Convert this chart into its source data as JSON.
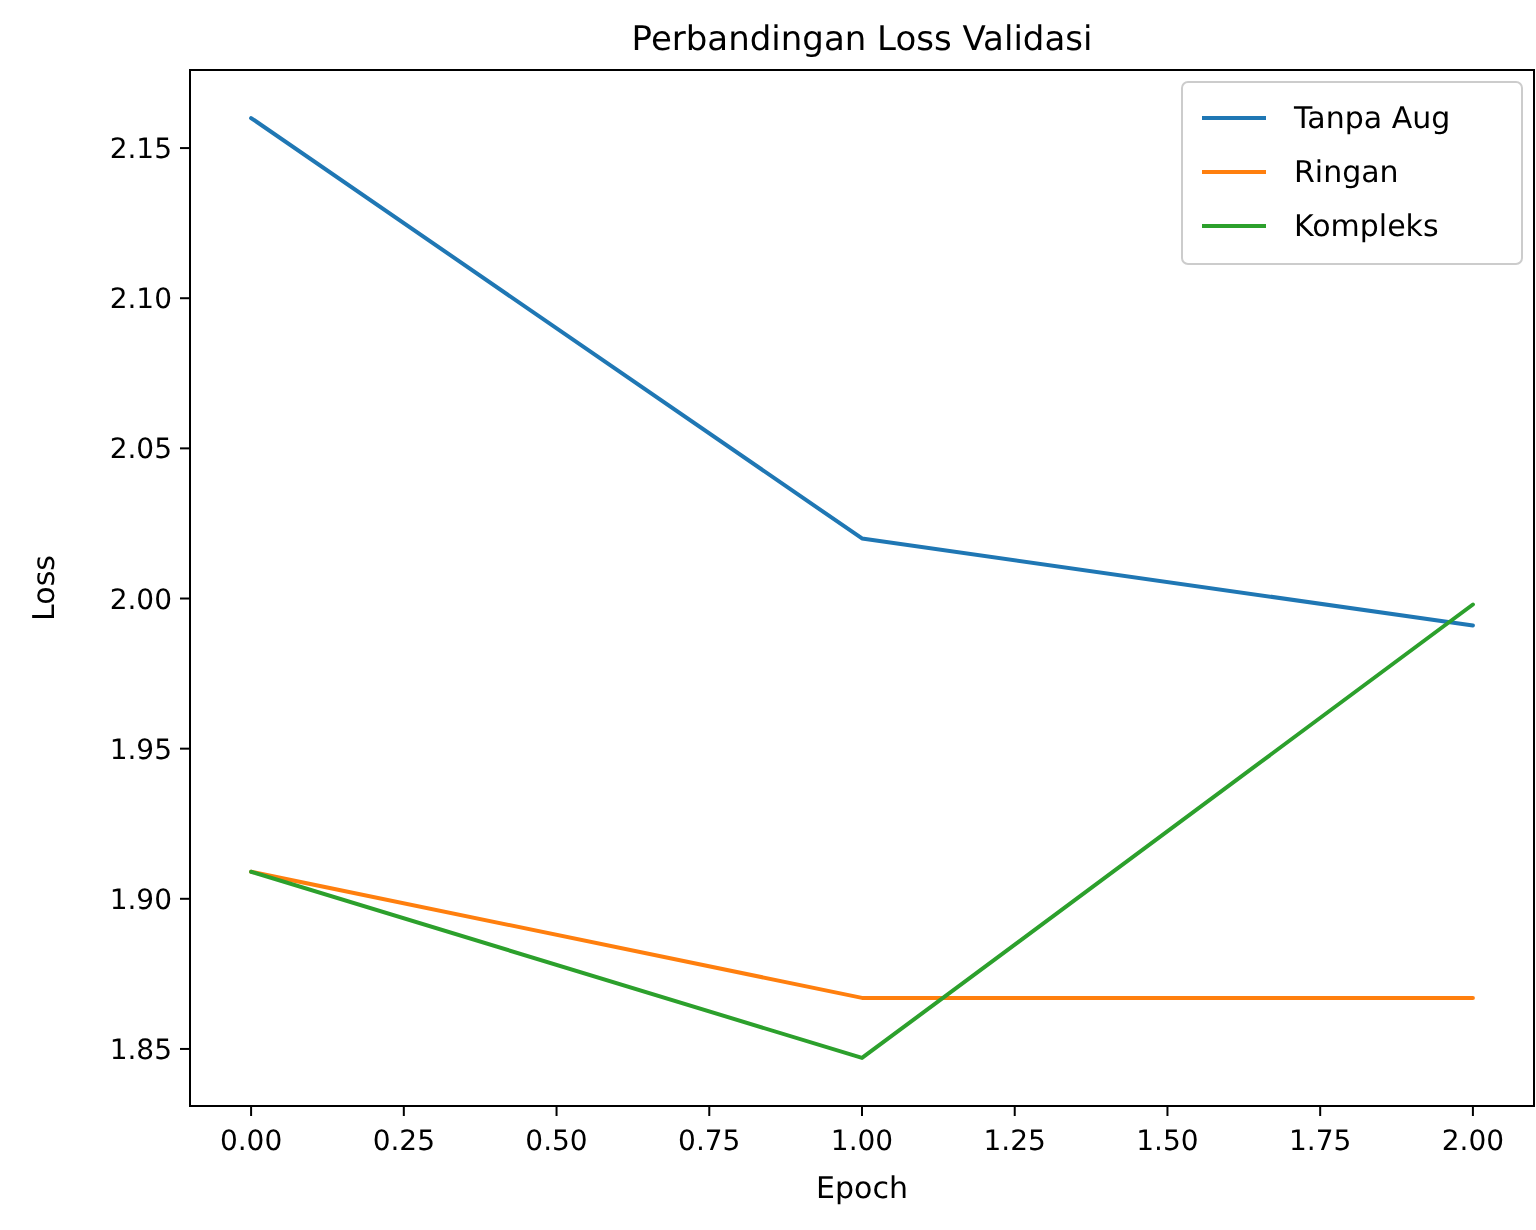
{
  "chart_data": {
    "type": "line",
    "title": "Perbandingan Loss Validasi",
    "xlabel": "Epoch",
    "ylabel": "Loss",
    "x": [
      0,
      1,
      2
    ],
    "series": [
      {
        "name": "Tanpa Aug",
        "color": "#1f77b4",
        "values": [
          2.16,
          2.02,
          1.991
        ]
      },
      {
        "name": "Ringan",
        "color": "#ff7f0e",
        "values": [
          1.909,
          1.867,
          1.867
        ]
      },
      {
        "name": "Kompleks",
        "color": "#2ca02c",
        "values": [
          1.909,
          1.847,
          1.998
        ]
      }
    ],
    "xlim": [
      -0.1,
      2.1
    ],
    "xticks": [
      {
        "value": 0,
        "label": "0.00"
      },
      {
        "value": 0.25,
        "label": "0.25"
      },
      {
        "value": 0.5,
        "label": "0.50"
      },
      {
        "value": 0.75,
        "label": "0.75"
      },
      {
        "value": 1,
        "label": "1.00"
      },
      {
        "value": 1.25,
        "label": "1.25"
      },
      {
        "value": 1.5,
        "label": "1.50"
      },
      {
        "value": 1.75,
        "label": "1.75"
      },
      {
        "value": 2,
        "label": "2.00"
      }
    ],
    "ylim": [
      1.831,
      2.176
    ],
    "yticks": [
      {
        "value": 1.85,
        "label": "1.85"
      },
      {
        "value": 1.9,
        "label": "1.90"
      },
      {
        "value": 1.95,
        "label": "1.95"
      },
      {
        "value": 2,
        "label": "2.00"
      },
      {
        "value": 2.05,
        "label": "2.05"
      },
      {
        "value": 2.1,
        "label": "2.10"
      },
      {
        "value": 2.15,
        "label": "2.15"
      }
    ],
    "grid": false,
    "legend": "top right",
    "marker": "none",
    "line_style": "solid"
  }
}
